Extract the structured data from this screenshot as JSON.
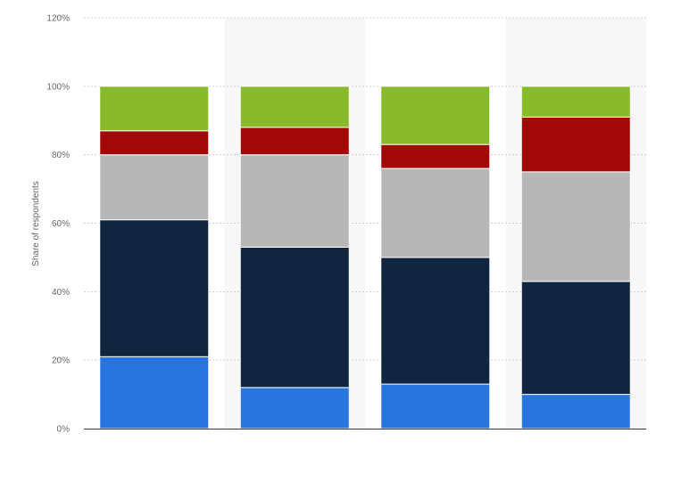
{
  "chart_data": {
    "type": "bar",
    "stacked": true,
    "title": "",
    "xlabel": "",
    "ylabel": "Share of respondents",
    "ylim": [
      0,
      120
    ],
    "yticks": [
      "0%",
      "20%",
      "40%",
      "60%",
      "80%",
      "100%",
      "120%"
    ],
    "ytick_values": [
      0,
      20,
      40,
      60,
      80,
      100,
      120
    ],
    "categories": [
      "",
      "",
      "",
      ""
    ],
    "grid": true,
    "legend": "none",
    "series": [
      {
        "values": [
          21,
          12,
          13,
          10
        ],
        "color": "#2876dd"
      },
      {
        "values": [
          40,
          41,
          37,
          33
        ],
        "color": "#10263e"
      },
      {
        "values": [
          19,
          27,
          26,
          32
        ],
        "color": "#b7b7b7"
      },
      {
        "values": [
          7,
          8,
          7,
          16
        ],
        "color": "#a20808"
      },
      {
        "values": [
          13,
          12,
          17,
          9
        ],
        "color": "#88bb2a"
      }
    ],
    "column_band_color": "#f7f7f7"
  }
}
